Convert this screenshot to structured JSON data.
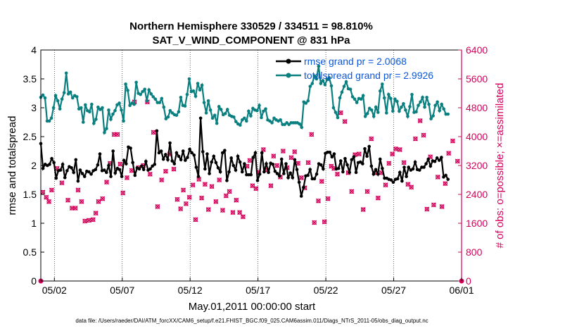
{
  "chart_data": {
    "type": "line",
    "title_line1": "Northern Hemisphere 330529 / 334511 = 98.810%",
    "title_line2": "SAT_V_WIND_COMPONENT @ 831 hPa",
    "xlabel": "May.01,2011 00:00:00 start",
    "ylabel_left": "rmse and totalspread",
    "ylabel_right": "# of obs: o=possible; ×=assimilated",
    "footer": "data file: /Users/raeder/DAI/ATM_forcXX/CAM6_setup/f.e21.FHIST_BGC.f09_025.CAM6assim.011/Diags_NTrS_2011-05/obs_diag_output.nc",
    "x_tick_labels": [
      "05/02",
      "05/07",
      "05/12",
      "05/17",
      "05/22",
      "05/27",
      "06/01"
    ],
    "x_tick_days": [
      1,
      6,
      11,
      16,
      21,
      26,
      31
    ],
    "xlim_days": [
      0,
      31
    ],
    "ylim_left": [
      0,
      4
    ],
    "yticks_left": [
      "0",
      "0.5",
      "1",
      "1.5",
      "2",
      "2.5",
      "3",
      "3.5",
      "4"
    ],
    "ylim_right": [
      0,
      6400
    ],
    "yticks_right": [
      "0",
      "800",
      "1600",
      "2400",
      "3200",
      "4000",
      "4800",
      "5600",
      "6400"
    ],
    "legend": [
      "rmse grand pr = 2.0068",
      "totalspread grand pr = 2.9926"
    ],
    "colors": {
      "rmse": "#000000",
      "spread": "#0a7f7f",
      "obs": "#d6005a"
    },
    "series": [
      {
        "name": "rmse",
        "values": [
          2.38,
          1.95,
          2.02,
          2.0,
          2.02,
          2.12,
          2.05,
          1.78,
          1.91,
          1.92,
          2.02,
          1.79,
          1.91,
          1.98,
          1.96,
          1.88,
          2.1,
          1.73,
          1.92,
          1.86,
          1.81,
          1.9,
          1.89,
          1.85,
          1.91,
          1.93,
          2.01,
          2.2,
          1.91,
          1.92,
          1.88,
          2.0,
          1.81,
          2.25,
          1.87,
          1.95,
          1.93,
          1.81,
          2.09,
          2.03,
          2.32,
          2.3,
          2.05,
          1.83,
          1.96,
          1.94,
          1.99,
          1.93,
          2.07,
          1.92,
          1.94,
          1.99,
          2.02,
          2.6,
          2.22,
          2.25,
          2.11,
          2.19,
          2.1,
          2.39,
          2.08,
          2.03,
          2.22,
          2.16,
          2.1,
          2.25,
          2.09,
          2.14,
          2.28,
          2.22,
          2.18,
          1.97,
          1.81,
          2.82,
          2.24,
          1.94,
          2.2,
          1.86,
          2.06,
          2.16,
          2.05,
          1.96,
          1.89,
          2.22,
          2.26,
          1.74,
          1.89,
          2.13,
          2.0,
          1.92,
          2.16,
          2.06,
          1.89,
          2.03,
          1.84,
          1.84,
          1.84,
          2.14,
          2.22,
          1.74,
          1.85,
          2.22,
          1.89,
          2.03,
          1.88,
          2.04,
          2.02,
          1.9,
          1.86,
          1.82,
          2.11,
          1.86,
          2.03,
          1.79,
          1.87,
          1.79,
          2.1,
          1.93,
          1.71,
          1.47,
          1.62,
          1.82,
          1.83,
          1.93,
          1.77,
          1.77,
          1.85,
          2.03,
          2.01,
          1.94,
          2.21,
          2.23,
          2.23,
          2.15,
          2.2,
          1.94,
          1.95,
          2.08,
          1.89,
          2.12,
          2.01,
          1.88,
          2.1,
          2.15,
          1.88,
          2.05,
          2.06,
          2.03,
          2.29,
          2.16,
          2.33,
          1.99,
          1.85,
          1.93,
          1.85,
          2.11,
          1.95,
          1.78,
          1.78,
          1.76,
          1.75,
          1.71,
          1.76,
          1.77,
          1.88,
          1.73,
          1.97,
          1.81,
          1.97,
          1.92,
          1.94,
          2.06,
          1.93,
          1.92,
          1.97,
          1.97,
          2.03,
          2.11,
          1.99,
          2.08,
          2.07,
          2.13,
          2.09,
          2.14,
          1.8,
          1.83,
          1.76
        ]
      },
      {
        "name": "totalspread",
        "values": [
          3.18,
          3.22,
          3.17,
          2.77,
          2.77,
          2.82,
          3.0,
          3.21,
          3.12,
          2.98,
          3.15,
          3.26,
          3.6,
          3.24,
          3.27,
          3.17,
          3.21,
          3.19,
          2.98,
          3.0,
          2.75,
          3.05,
          2.95,
          2.93,
          3.06,
          2.73,
          2.8,
          3.01,
          2.97,
          3.0,
          2.57,
          2.64,
          2.96,
          2.8,
          2.89,
          2.95,
          3.05,
          3.08,
          2.96,
          2.77,
          3.41,
          3.3,
          3.04,
          3.08,
          3.06,
          3.44,
          3.25,
          3.23,
          3.28,
          3.32,
          3.12,
          3.31,
          3.24,
          3.19,
          3.15,
          3.09,
          3.09,
          3.16,
          3.01,
          2.81,
          2.84,
          2.95,
          2.91,
          2.88,
          2.87,
          2.93,
          3.18,
          3.04,
          3.03,
          3.23,
          3.5,
          3.28,
          3.29,
          3.2,
          3.42,
          3.31,
          3.39,
          3.09,
          2.91,
          3.12,
          2.96,
          2.82,
          2.87,
          2.73,
          3.02,
          2.97,
          2.88,
          2.9,
          2.97,
          2.87,
          2.85,
          2.84,
          2.76,
          2.72,
          2.7,
          2.79,
          2.82,
          2.77,
          2.94,
          2.86,
          2.99,
          2.96,
          2.95,
          3.04,
          2.83,
          2.94,
          2.98,
          2.79,
          2.77,
          2.74,
          2.82,
          2.79,
          2.77,
          2.79,
          2.71,
          2.71,
          2.74,
          2.71,
          2.74,
          2.74,
          2.74,
          2.74,
          2.72,
          2.66,
          3.1,
          3.08,
          3.12,
          3.37,
          3.42,
          3.55,
          3.5,
          3.72,
          3.42,
          3.47,
          3.4,
          3.49,
          3.52,
          3.38,
          3.0,
          2.92,
          2.83,
          3.17,
          3.27,
          3.37,
          3.45,
          3.33,
          3.32,
          3.19,
          3.15,
          3.09,
          3.16,
          3.15,
          3.21,
          2.85,
          2.9,
          2.99,
          2.96,
          2.85,
          3.01,
          2.92,
          3.29,
          3.41,
          3.17,
          2.91,
          3.23,
          3.16,
          2.94,
          3.15,
          3.11,
          2.94,
          3.01,
          3.07,
          2.96,
          2.85,
          3.02,
          3.23,
          2.92,
          2.93,
          3.04,
          3.1,
          3.18,
          3.01,
          3.18,
          3.06,
          2.81,
          2.86,
          3.04,
          3.1,
          2.95,
          3.06,
          2.98,
          2.89,
          2.89
        ]
      },
      {
        "name": "obs_possible",
        "points": [
          [
            0.15,
            2460
          ],
          [
            0.4,
            2320
          ],
          [
            0.6,
            2200
          ],
          [
            0.8,
            2520
          ],
          [
            1.2,
            3120
          ],
          [
            1.55,
            2720
          ],
          [
            2.0,
            2240
          ],
          [
            2.3,
            2020
          ],
          [
            2.55,
            2020
          ],
          [
            2.75,
            2520
          ],
          [
            3.0,
            2200
          ],
          [
            3.25,
            1660
          ],
          [
            3.55,
            1680
          ],
          [
            3.85,
            1700
          ],
          [
            4.05,
            1880
          ],
          [
            4.25,
            2200
          ],
          [
            4.55,
            2280
          ],
          [
            4.85,
            2740
          ],
          [
            5.1,
            3260
          ],
          [
            5.4,
            4060
          ],
          [
            5.65,
            4060
          ],
          [
            5.85,
            3240
          ],
          [
            6.05,
            2440
          ],
          [
            6.35,
            2860
          ],
          [
            6.7,
            3060
          ],
          [
            6.9,
            4960
          ],
          [
            7.2,
            3140
          ],
          [
            7.55,
            3200
          ],
          [
            7.85,
            4960
          ],
          [
            8.05,
            2960
          ],
          [
            8.3,
            4120
          ],
          [
            8.6,
            2060
          ],
          [
            8.9,
            2800
          ],
          [
            9.2,
            3040
          ],
          [
            9.5,
            3520
          ],
          [
            9.8,
            3100
          ],
          [
            10.05,
            2260
          ],
          [
            10.3,
            2000
          ],
          [
            10.5,
            2520
          ],
          [
            10.7,
            2140
          ],
          [
            10.95,
            2320
          ],
          [
            11.2,
            2660
          ],
          [
            11.4,
            1700
          ],
          [
            11.65,
            2820
          ],
          [
            11.85,
            2300
          ],
          [
            12.1,
            2680
          ],
          [
            12.35,
            1980
          ],
          [
            12.6,
            2620
          ],
          [
            12.9,
            2200
          ],
          [
            13.15,
            2800
          ],
          [
            13.4,
            1960
          ],
          [
            13.65,
            2360
          ],
          [
            13.9,
            2480
          ],
          [
            14.15,
            1900
          ],
          [
            14.4,
            2240
          ],
          [
            14.65,
            1900
          ],
          [
            14.9,
            1780
          ],
          [
            15.2,
            3180
          ],
          [
            15.4,
            3340
          ],
          [
            15.6,
            2640
          ],
          [
            15.85,
            2560
          ],
          [
            16.05,
            3020
          ],
          [
            16.4,
            3640
          ],
          [
            16.7,
            3080
          ],
          [
            16.95,
            2640
          ],
          [
            17.15,
            3460
          ],
          [
            17.4,
            3200
          ],
          [
            17.65,
            2880
          ],
          [
            17.85,
            3600
          ],
          [
            18.15,
            3140
          ],
          [
            18.45,
            3420
          ],
          [
            18.7,
            3580
          ],
          [
            18.95,
            3260
          ],
          [
            19.2,
            2860
          ],
          [
            19.45,
            2580
          ],
          [
            19.7,
            3280
          ],
          [
            19.95,
            4060
          ],
          [
            20.15,
            1620
          ],
          [
            20.45,
            2220
          ],
          [
            20.7,
            2760
          ],
          [
            20.9,
            1640
          ],
          [
            21.15,
            2280
          ],
          [
            21.4,
            3180
          ],
          [
            21.6,
            3120
          ],
          [
            21.85,
            2960
          ],
          [
            22.1,
            4660
          ],
          [
            22.4,
            4420
          ],
          [
            22.65,
            3000
          ],
          [
            22.9,
            2480
          ],
          [
            23.15,
            3500
          ],
          [
            23.45,
            3520
          ],
          [
            23.75,
            1980
          ],
          [
            24.05,
            2480
          ],
          [
            24.35,
            3940
          ],
          [
            24.6,
            3000
          ],
          [
            24.85,
            2300
          ],
          [
            25.1,
            3000
          ],
          [
            25.4,
            2660
          ],
          [
            25.65,
            3260
          ],
          [
            25.9,
            3520
          ],
          [
            26.15,
            3660
          ],
          [
            26.45,
            3640
          ],
          [
            26.75,
            3280
          ],
          [
            27.05,
            2680
          ],
          [
            27.3,
            2600
          ],
          [
            27.6,
            3940
          ],
          [
            27.95,
            4440
          ],
          [
            28.2,
            4040
          ],
          [
            28.45,
            1990
          ],
          [
            28.7,
            3440
          ],
          [
            28.95,
            2110
          ],
          [
            29.25,
            2880
          ],
          [
            29.55,
            2060
          ],
          [
            29.8,
            2700
          ],
          [
            30.05,
            3540
          ],
          [
            30.35,
            3880
          ],
          [
            30.7,
            3320
          ]
        ]
      }
    ]
  }
}
